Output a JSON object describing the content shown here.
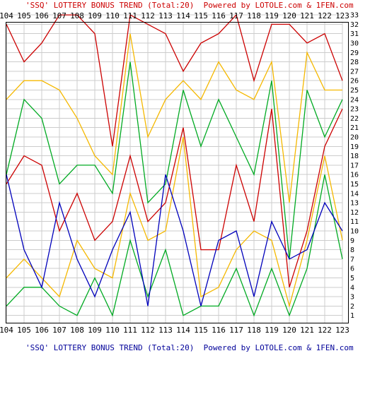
{
  "top_caption": "'SSQ' LOTTERY BONUS TREND (Total:20)  Powered by LOTOLE.com & 1FEN.com",
  "bottom_caption": "'SSQ' LOTTERY BONUS TREND (Total:20)  Powered by LOTOLE.com & 1FEN.com",
  "colors": {
    "red": "#cc0000",
    "gold": "#f5b800",
    "green": "#00aa22",
    "blue": "#0000bb",
    "grid": "#cccccc",
    "caption_top": "#cc0000",
    "caption_bottom": "#000099"
  },
  "chart_data": {
    "type": "line",
    "title": "'SSQ' LOTTERY BONUS TREND (Total:20)",
    "x": [
      "104",
      "105",
      "106",
      "107",
      "108",
      "109",
      "110",
      "111",
      "112",
      "113",
      "114",
      "115",
      "116",
      "117",
      "118",
      "119",
      "120",
      "121",
      "122",
      "123"
    ],
    "ylim": [
      1,
      33
    ],
    "yticks": [
      1,
      2,
      3,
      4,
      5,
      6,
      7,
      8,
      9,
      10,
      11,
      12,
      13,
      14,
      15,
      16,
      17,
      18,
      19,
      20,
      21,
      22,
      23,
      24,
      25,
      26,
      27,
      28,
      29,
      30,
      31,
      32,
      33
    ],
    "grid": true,
    "series": [
      {
        "color": "#cc0000",
        "values": [
          32,
          28,
          30,
          33,
          33,
          31,
          19,
          33,
          32,
          31,
          27,
          30,
          31,
          33,
          26,
          32,
          32,
          30,
          31,
          26
        ]
      },
      {
        "color": "#f5b800",
        "values": [
          24,
          26,
          26,
          25,
          22,
          18,
          16,
          31,
          20,
          24,
          26,
          24,
          28,
          25,
          24,
          28,
          13,
          29,
          25,
          25
        ]
      },
      {
        "color": "#00aa22",
        "values": [
          16,
          24,
          22,
          15,
          17,
          17,
          14,
          28,
          13,
          15,
          25,
          19,
          24,
          20,
          16,
          26,
          7,
          25,
          20,
          24
        ]
      },
      {
        "color": "#cc0000",
        "values": [
          15,
          18,
          17,
          10,
          14,
          9,
          11,
          18,
          11,
          13,
          21,
          8,
          8,
          17,
          11,
          23,
          4,
          10,
          19,
          23
        ]
      },
      {
        "color": "#f5b800",
        "values": [
          5,
          7,
          5,
          3,
          9,
          6,
          5,
          14,
          9,
          10,
          20,
          3,
          4,
          8,
          10,
          9,
          2,
          9,
          18,
          9
        ]
      },
      {
        "color": "#00aa22",
        "values": [
          2,
          4,
          4,
          2,
          1,
          5,
          1,
          9,
          3,
          8,
          1,
          2,
          2,
          6,
          1,
          6,
          1,
          6,
          16,
          7
        ]
      },
      {
        "color": "#0000bb",
        "values": [
          16,
          8,
          4,
          13,
          7,
          3,
          8,
          12,
          2,
          16,
          10,
          2,
          9,
          10,
          3,
          11,
          7,
          8,
          13,
          10
        ]
      }
    ]
  }
}
